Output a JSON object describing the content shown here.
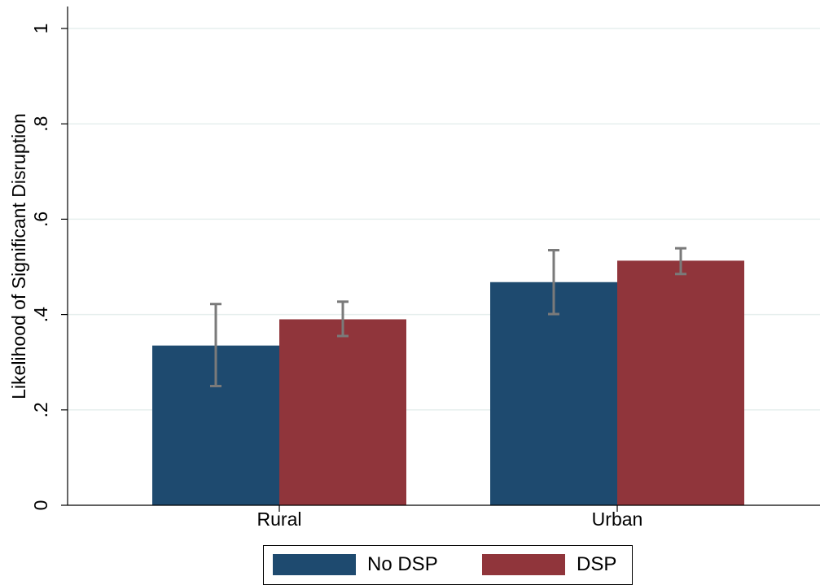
{
  "chart_data": {
    "type": "bar",
    "title": "",
    "xlabel": "",
    "ylabel": "Likelihood of Significant Disruption",
    "ylim": [
      0,
      1.03
    ],
    "yticks": [
      {
        "value": 0,
        "label": "0"
      },
      {
        "value": 0.2,
        "label": ".2"
      },
      {
        "value": 0.4,
        "label": ".4"
      },
      {
        "value": 0.6,
        "label": ".6"
      },
      {
        "value": 0.8,
        "label": ".8"
      },
      {
        "value": 1,
        "label": "1"
      }
    ],
    "grid": true,
    "legend_position": "bottom",
    "categories": [
      "Rural",
      "Urban"
    ],
    "series": [
      {
        "name": "No DSP",
        "color": "#1e4a6f",
        "values": [
          0.335,
          0.468
        ],
        "ci_low": [
          0.25,
          0.401
        ],
        "ci_high": [
          0.422,
          0.535
        ]
      },
      {
        "name": "DSP",
        "color": "#90353b",
        "values": [
          0.39,
          0.513
        ],
        "ci_low": [
          0.355,
          0.485
        ],
        "ci_high": [
          0.427,
          0.539
        ]
      }
    ],
    "errorbar_color": "#7a7a7a",
    "grid_color": "#e6efee"
  }
}
